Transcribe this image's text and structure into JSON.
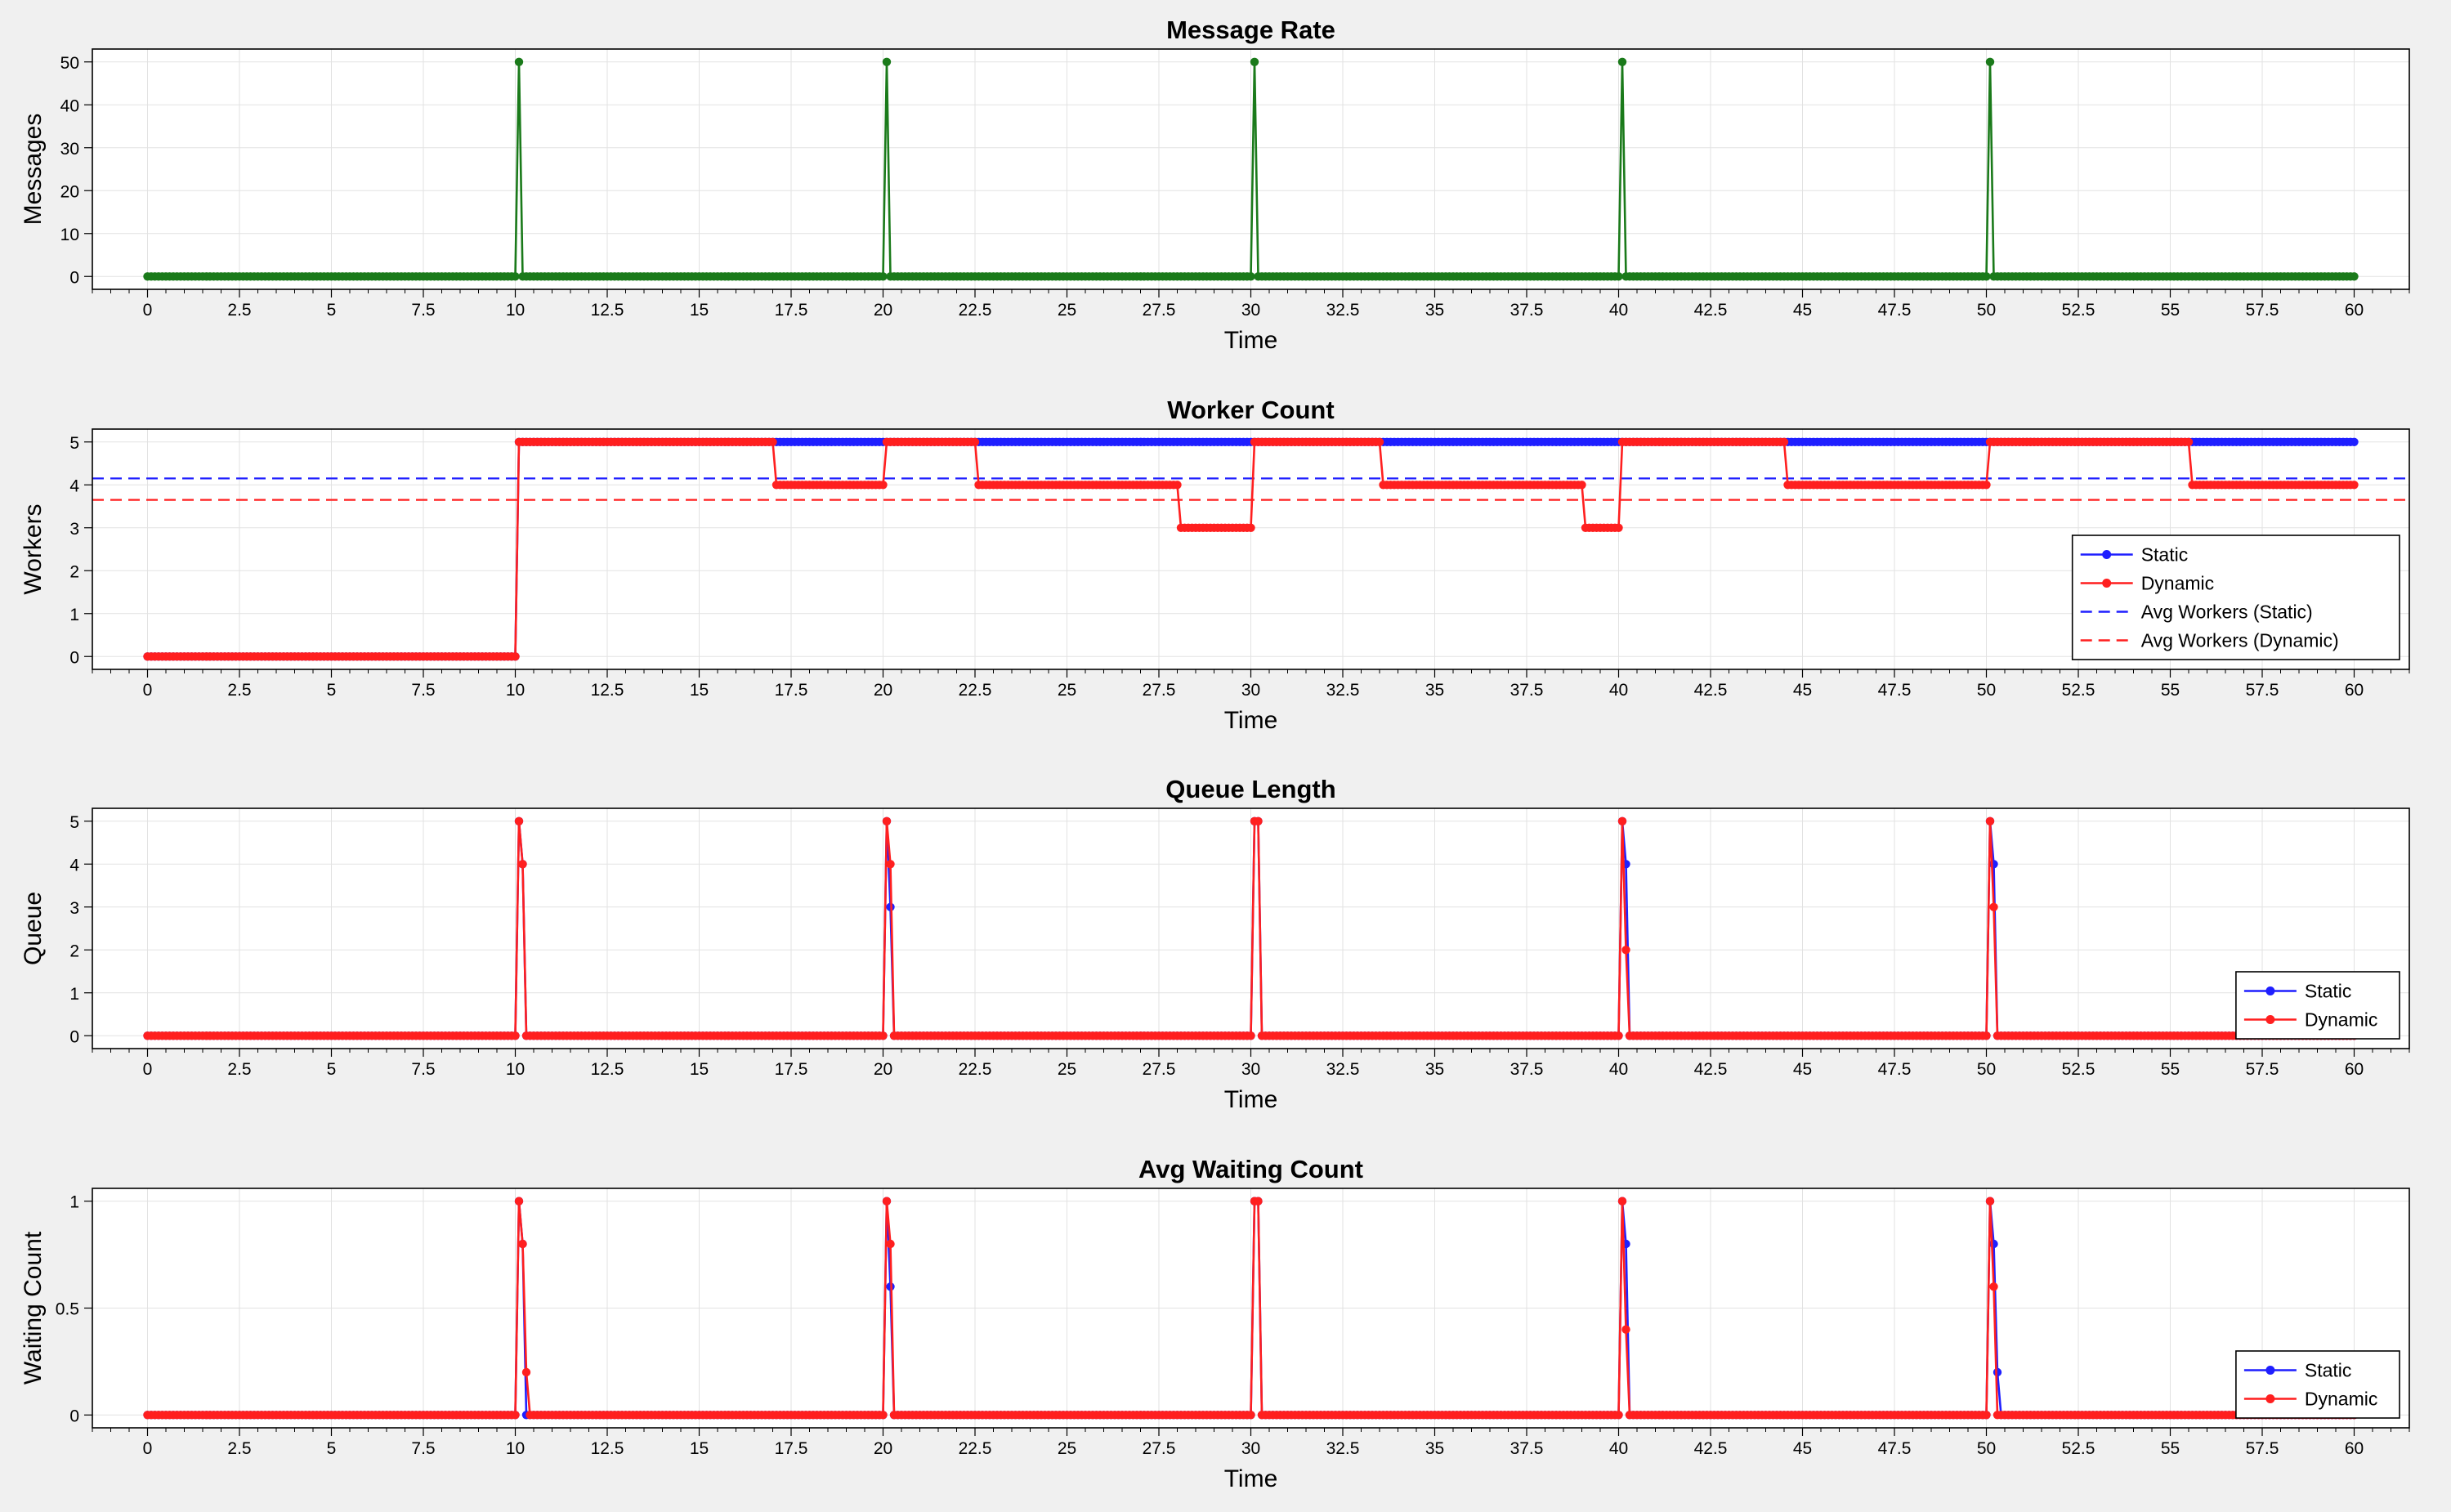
{
  "colors": {
    "background": "#f0f0f0",
    "plot_background": "#ffffff",
    "grid": "#e2e2e2",
    "message_series": "#1a7a1a",
    "static": "#1f1fff",
    "dynamic": "#ff1f1f"
  },
  "chart_data": [
    {
      "id": "message-rate",
      "type": "line",
      "title": "Message Rate",
      "xlabel": "Time",
      "ylabel": "Messages",
      "xlim": [
        -1.5,
        61.5
      ],
      "ylim": [
        -3,
        53
      ],
      "xticks": [
        0,
        2.5,
        5,
        7.5,
        10,
        12.5,
        15,
        17.5,
        20,
        22.5,
        25,
        27.5,
        30,
        32.5,
        35,
        37.5,
        40,
        42.5,
        45,
        47.5,
        50,
        52.5,
        55,
        57.5,
        60
      ],
      "yticks": [
        0,
        10,
        20,
        30,
        40,
        50
      ],
      "grid": true,
      "legend": null,
      "series": [
        {
          "color": "#1a7a1a",
          "sampling_step": 0.1,
          "baseline": 0,
          "spikes": [
            [
              10.1,
              50
            ],
            [
              20.1,
              50
            ],
            [
              30.1,
              50
            ],
            [
              40.1,
              50
            ],
            [
              50.1,
              50
            ]
          ]
        }
      ]
    },
    {
      "id": "worker-count",
      "type": "line",
      "title": "Worker Count",
      "xlabel": "Time",
      "ylabel": "Workers",
      "xlim": [
        -1.5,
        61.5
      ],
      "ylim": [
        -0.3,
        5.3
      ],
      "xticks": [
        0,
        2.5,
        5,
        7.5,
        10,
        12.5,
        15,
        17.5,
        20,
        22.5,
        25,
        27.5,
        30,
        32.5,
        35,
        37.5,
        40,
        42.5,
        45,
        47.5,
        50,
        52.5,
        55,
        57.5,
        60
      ],
      "yticks": [
        0,
        1,
        2,
        3,
        4,
        5
      ],
      "grid": true,
      "legend": {
        "placement": "bottom-right"
      },
      "series": [
        {
          "name": "Static",
          "color": "#1f1fff",
          "style": "solid-markers",
          "sampling_step": 0.1,
          "steps": [
            [
              0,
              0
            ],
            [
              10.1,
              5
            ],
            [
              60,
              5
            ]
          ]
        },
        {
          "name": "Dynamic",
          "color": "#ff1f1f",
          "style": "solid-markers",
          "sampling_step": 0.1,
          "steps": [
            [
              0,
              0
            ],
            [
              10.1,
              5
            ],
            [
              17.1,
              4
            ],
            [
              20.1,
              5
            ],
            [
              22.6,
              4
            ],
            [
              28.1,
              3
            ],
            [
              30.1,
              5
            ],
            [
              33.6,
              4
            ],
            [
              39.1,
              3
            ],
            [
              40.1,
              5
            ],
            [
              44.6,
              4
            ],
            [
              50.1,
              5
            ],
            [
              55.6,
              4
            ],
            [
              60,
              4
            ]
          ]
        }
      ],
      "reference_lines": [
        {
          "name": "Avg Workers (Static)",
          "color": "#1f1fff",
          "value": 4.15
        },
        {
          "name": "Avg Workers (Dynamic)",
          "color": "#ff1f1f",
          "value": 3.65
        }
      ]
    },
    {
      "id": "queue-length",
      "type": "line",
      "title": "Queue Length",
      "xlabel": "Time",
      "ylabel": "Queue",
      "xlim": [
        -1.5,
        61.5
      ],
      "ylim": [
        -0.3,
        5.3
      ],
      "xticks": [
        0,
        2.5,
        5,
        7.5,
        10,
        12.5,
        15,
        17.5,
        20,
        22.5,
        25,
        27.5,
        30,
        32.5,
        35,
        37.5,
        40,
        42.5,
        45,
        47.5,
        50,
        52.5,
        55,
        57.5,
        60
      ],
      "yticks": [
        0,
        1,
        2,
        3,
        4,
        5
      ],
      "grid": true,
      "legend": {
        "placement": "bottom-right"
      },
      "series": [
        {
          "name": "Static",
          "color": "#1f1fff",
          "style": "solid-markers",
          "sampling_step": 0.1,
          "baseline": 0,
          "spikes": [
            [
              10.1,
              5
            ],
            [
              10.2,
              4
            ],
            [
              20.1,
              5
            ],
            [
              20.2,
              3
            ],
            [
              30.1,
              5
            ],
            [
              30.2,
              5
            ],
            [
              40.1,
              5
            ],
            [
              40.2,
              4
            ],
            [
              50.1,
              5
            ],
            [
              50.2,
              4
            ]
          ]
        },
        {
          "name": "Dynamic",
          "color": "#ff1f1f",
          "style": "solid-markers",
          "sampling_step": 0.1,
          "baseline": 0,
          "spikes": [
            [
              10.1,
              5
            ],
            [
              10.2,
              4
            ],
            [
              20.1,
              5
            ],
            [
              20.2,
              4
            ],
            [
              30.1,
              5
            ],
            [
              30.2,
              5
            ],
            [
              40.1,
              5
            ],
            [
              40.2,
              2
            ],
            [
              50.1,
              5
            ],
            [
              50.2,
              3
            ]
          ]
        }
      ]
    },
    {
      "id": "avg-waiting-count",
      "type": "line",
      "title": "Avg Waiting Count",
      "xlabel": "Time",
      "ylabel": "Waiting Count",
      "xlim": [
        -1.5,
        61.5
      ],
      "ylim": [
        -0.06,
        1.06
      ],
      "xticks": [
        0,
        2.5,
        5,
        7.5,
        10,
        12.5,
        15,
        17.5,
        20,
        22.5,
        25,
        27.5,
        30,
        32.5,
        35,
        37.5,
        40,
        42.5,
        45,
        47.5,
        50,
        52.5,
        55,
        57.5,
        60
      ],
      "yticks": [
        0,
        0.5,
        1
      ],
      "grid": true,
      "legend": {
        "placement": "bottom-right"
      },
      "series": [
        {
          "name": "Static",
          "color": "#1f1fff",
          "style": "solid-markers",
          "sampling_step": 0.1,
          "baseline": 0,
          "spikes": [
            [
              10.1,
              1
            ],
            [
              10.2,
              0.8
            ],
            [
              20.1,
              1
            ],
            [
              20.2,
              0.6
            ],
            [
              30.1,
              1
            ],
            [
              30.2,
              1
            ],
            [
              40.1,
              1
            ],
            [
              40.2,
              0.8
            ],
            [
              50.1,
              1
            ],
            [
              50.2,
              0.8
            ],
            [
              50.3,
              0.2
            ]
          ]
        },
        {
          "name": "Dynamic",
          "color": "#ff1f1f",
          "style": "solid-markers",
          "sampling_step": 0.1,
          "baseline": 0,
          "spikes": [
            [
              10.1,
              1
            ],
            [
              10.2,
              0.8
            ],
            [
              10.3,
              0.2
            ],
            [
              20.1,
              1
            ],
            [
              20.2,
              0.8
            ],
            [
              30.1,
              1
            ],
            [
              30.2,
              1
            ],
            [
              40.1,
              1
            ],
            [
              40.2,
              0.4
            ],
            [
              50.1,
              1
            ],
            [
              50.2,
              0.6
            ]
          ]
        }
      ]
    }
  ]
}
